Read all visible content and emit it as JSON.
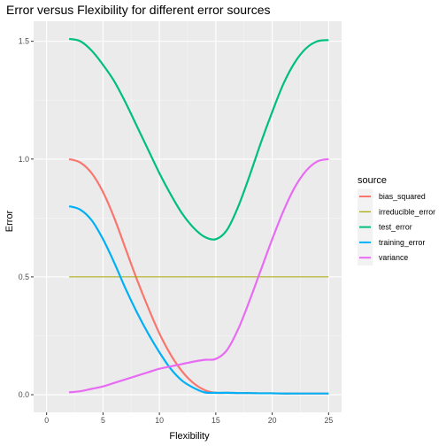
{
  "chart_data": {
    "type": "line",
    "title": "Error versus Flexibility for different error sources",
    "xlabel": "Flexibility",
    "ylabel": "Error",
    "xlim": [
      -1.15,
      26.15
    ],
    "ylim": [
      -0.075,
      1.585
    ],
    "x_ticks": [
      0,
      5,
      10,
      15,
      20,
      25
    ],
    "x_tick_labels": [
      "0",
      "5",
      "10",
      "15",
      "20",
      "25"
    ],
    "y_ticks": [
      0.0,
      0.5,
      1.0,
      1.5
    ],
    "y_tick_labels": [
      "0.0",
      "0.5",
      "1.0",
      "1.5"
    ],
    "grid": true,
    "legend": {
      "title": "source",
      "placement": "right"
    },
    "series": [
      {
        "name": "bias_squared",
        "color": "#F8766D",
        "x": [
          2,
          3,
          4,
          5,
          6,
          7,
          8,
          9,
          10,
          11,
          12,
          13,
          14,
          15,
          16,
          17,
          18,
          19,
          20,
          21,
          22,
          23,
          24,
          25
        ],
        "y": [
          1.0,
          0.985,
          0.94,
          0.86,
          0.75,
          0.62,
          0.49,
          0.37,
          0.26,
          0.17,
          0.1,
          0.05,
          0.02,
          0.008,
          0.008,
          0.007,
          0.007,
          0.006,
          0.006,
          0.005,
          0.005,
          0.005,
          0.005,
          0.005
        ]
      },
      {
        "name": "irreducible_error",
        "color": "#A3A500",
        "x": [
          2,
          25
        ],
        "y": [
          0.5,
          0.5
        ]
      },
      {
        "name": "test_error",
        "color": "#00BF7D",
        "x": [
          2,
          3,
          4,
          5,
          6,
          7,
          8,
          9,
          10,
          11,
          12,
          13,
          14,
          15,
          16,
          17,
          18,
          19,
          20,
          21,
          22,
          23,
          24,
          25
        ],
        "y": [
          1.51,
          1.5,
          1.46,
          1.4,
          1.33,
          1.24,
          1.14,
          1.04,
          0.94,
          0.85,
          0.77,
          0.71,
          0.67,
          0.66,
          0.7,
          0.8,
          0.93,
          1.07,
          1.2,
          1.32,
          1.41,
          1.47,
          1.5,
          1.505
        ]
      },
      {
        "name": "training_error",
        "color": "#00B0F6",
        "x": [
          2,
          3,
          4,
          5,
          6,
          7,
          8,
          9,
          10,
          11,
          12,
          13,
          14,
          15,
          16,
          17,
          18,
          19,
          20,
          21,
          22,
          23,
          24,
          25
        ],
        "y": [
          0.8,
          0.785,
          0.74,
          0.66,
          0.56,
          0.45,
          0.35,
          0.26,
          0.18,
          0.11,
          0.06,
          0.03,
          0.01,
          0.008,
          0.008,
          0.007,
          0.007,
          0.006,
          0.006,
          0.005,
          0.005,
          0.005,
          0.005,
          0.005
        ]
      },
      {
        "name": "variance",
        "color": "#E76BF3",
        "x": [
          2,
          3,
          4,
          5,
          6,
          7,
          8,
          9,
          10,
          11,
          12,
          13,
          14,
          15,
          16,
          17,
          18,
          19,
          20,
          21,
          22,
          23,
          24,
          25
        ],
        "y": [
          0.01,
          0.015,
          0.025,
          0.035,
          0.05,
          0.065,
          0.08,
          0.095,
          0.11,
          0.12,
          0.13,
          0.14,
          0.148,
          0.152,
          0.19,
          0.28,
          0.4,
          0.53,
          0.66,
          0.78,
          0.88,
          0.95,
          0.99,
          1.0
        ]
      }
    ]
  }
}
